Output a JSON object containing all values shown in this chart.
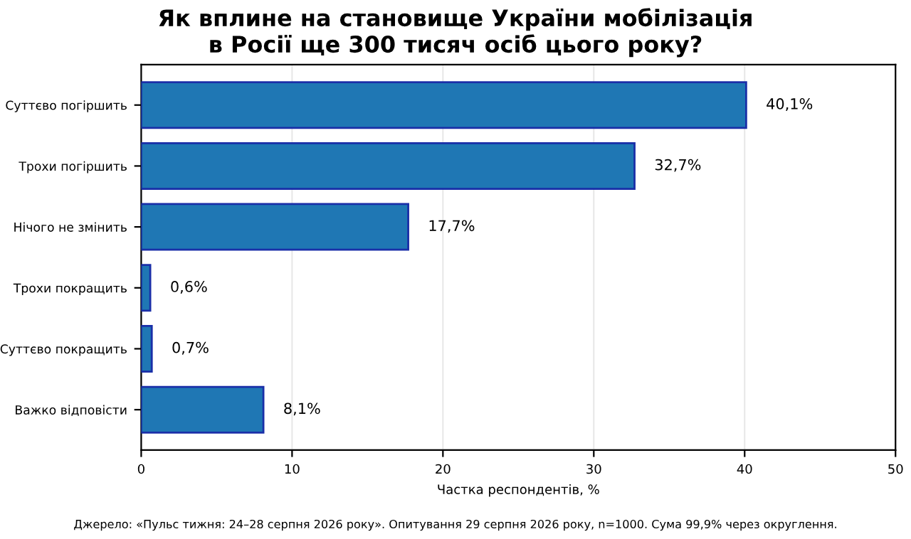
{
  "chart_data": {
    "type": "bar",
    "orientation": "horizontal",
    "title": "Як вплине на становище України мобілізація\nв Росії ще 300 тисяч осіб цього року?",
    "categories": [
      "Суттєво погіршить",
      "Трохи погіршить",
      "Нічого не змінить",
      "Трохи покращить",
      "Суттєво покращить",
      "Важко відповісти"
    ],
    "values": [
      40.1,
      32.7,
      17.7,
      0.6,
      0.7,
      8.1
    ],
    "value_labels": [
      "40,1%",
      "32,7%",
      "17,7%",
      "0,6%",
      "0,7%",
      "8,1%"
    ],
    "color": "#1f77b4",
    "xlabel": "Частка респондентів, %",
    "xlim": [
      0,
      50
    ],
    "xticks": [
      0,
      10,
      20,
      30,
      40,
      50
    ],
    "grid": "x",
    "annotations": [
      "Джерело: «Пульс тижня: 24–28 серпня 2026 року». Опитування 29 серпня 2026 року, n=1000. Сума 99,9% через округлення."
    ]
  }
}
